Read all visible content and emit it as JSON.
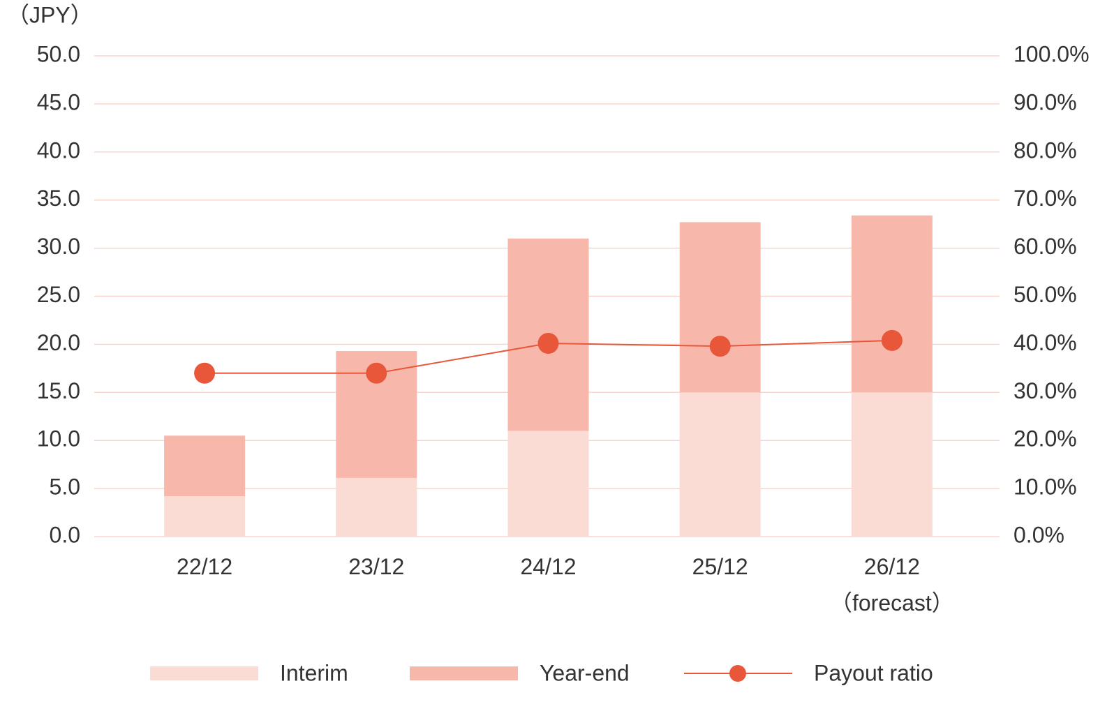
{
  "chart_data": {
    "type": "bar",
    "stacked": true,
    "y_axis_label": "（JPY）",
    "categories": [
      "22/12",
      "23/12",
      "24/12",
      "25/12",
      "26/12\n（forecast）"
    ],
    "series": [
      {
        "name": "Interim",
        "type": "bar",
        "color": "#fbdcd5",
        "values": [
          4.2,
          6.1,
          11.0,
          15.0,
          15.0
        ]
      },
      {
        "name": "Year-end",
        "type": "bar",
        "color": "#f7b8ab",
        "values": [
          6.3,
          13.2,
          20.0,
          17.7,
          18.4
        ]
      },
      {
        "name": "Payout ratio",
        "type": "line",
        "axis": "y2",
        "color": "#e8573a",
        "values": [
          34.0,
          34.0,
          40.2,
          39.6,
          40.8
        ]
      }
    ],
    "ylim": [
      0,
      50
    ],
    "yticks": [
      {
        "value": 0,
        "label": "0.0"
      },
      {
        "value": 5,
        "label": "5.0"
      },
      {
        "value": 10,
        "label": "10.0"
      },
      {
        "value": 15,
        "label": "15.0"
      },
      {
        "value": 20,
        "label": "20.0"
      },
      {
        "value": 25,
        "label": "25.0"
      },
      {
        "value": 30,
        "label": "30.0"
      },
      {
        "value": 35,
        "label": "35.0"
      },
      {
        "value": 40,
        "label": "40.0"
      },
      {
        "value": 45,
        "label": "45.0"
      },
      {
        "value": 50,
        "label": "50.0"
      }
    ],
    "y2lim": [
      0,
      100
    ],
    "y2ticks": [
      {
        "value": 0,
        "label": "0.0%"
      },
      {
        "value": 10,
        "label": "10.0%"
      },
      {
        "value": 20,
        "label": "20.0%"
      },
      {
        "value": 30,
        "label": "30.0%"
      },
      {
        "value": 40,
        "label": "40.0%"
      },
      {
        "value": 50,
        "label": "50.0%"
      },
      {
        "value": 60,
        "label": "60.0%"
      },
      {
        "value": 70,
        "label": "70.0%"
      },
      {
        "value": 80,
        "label": "80.0%"
      },
      {
        "value": 90,
        "label": "90.0%"
      },
      {
        "value": 100,
        "label": "100.0%"
      }
    ],
    "grid": true,
    "grid_color": "#f8d5cc",
    "legend": "bottom"
  }
}
